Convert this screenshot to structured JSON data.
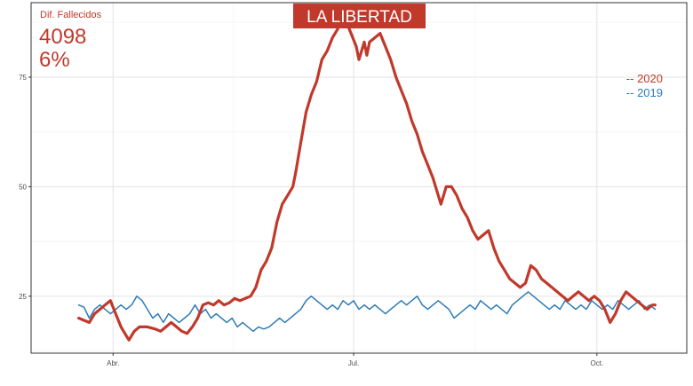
{
  "chart_data": {
    "type": "line",
    "title": "LA LIBERTAD",
    "annotation": {
      "label": "Dif. Fallecidos",
      "value": "4098",
      "percent": "6%"
    },
    "x_ticks": [
      {
        "label": "Abr.",
        "day": 91
      },
      {
        "label": "Jul.",
        "day": 182
      },
      {
        "label": "Oct.",
        "day": 274
      }
    ],
    "y_ticks": [
      25,
      50,
      75
    ],
    "xlim": [
      60,
      308
    ],
    "ylim": [
      12,
      92
    ],
    "grid": true,
    "legend_position": "right",
    "series": [
      {
        "name": "-- 2020",
        "color": "#c0392b",
        "points": [
          [
            78,
            20
          ],
          [
            80,
            19.5
          ],
          [
            82,
            19
          ],
          [
            84,
            21
          ],
          [
            86,
            22
          ],
          [
            88,
            23
          ],
          [
            90,
            24
          ],
          [
            92,
            21
          ],
          [
            94,
            18
          ],
          [
            96,
            16
          ],
          [
            97,
            15
          ],
          [
            99,
            17
          ],
          [
            101,
            18
          ],
          [
            104,
            18
          ],
          [
            107,
            17.5
          ],
          [
            109,
            17
          ],
          [
            111,
            18
          ],
          [
            113,
            19
          ],
          [
            115,
            18
          ],
          [
            117,
            17
          ],
          [
            119,
            16.5
          ],
          [
            121,
            18
          ],
          [
            123,
            20
          ],
          [
            125,
            23
          ],
          [
            127,
            23.5
          ],
          [
            129,
            23
          ],
          [
            131,
            24
          ],
          [
            133,
            23
          ],
          [
            135,
            23.5
          ],
          [
            137,
            24.5
          ],
          [
            139,
            24
          ],
          [
            141,
            24.5
          ],
          [
            143,
            25
          ],
          [
            145,
            27
          ],
          [
            147,
            31
          ],
          [
            149,
            33
          ],
          [
            151,
            36
          ],
          [
            153,
            42
          ],
          [
            155,
            46
          ],
          [
            157,
            48
          ],
          [
            159,
            50
          ],
          [
            160,
            53
          ],
          [
            162,
            60
          ],
          [
            164,
            67
          ],
          [
            166,
            71
          ],
          [
            168,
            74
          ],
          [
            170,
            79
          ],
          [
            172,
            81
          ],
          [
            174,
            84
          ],
          [
            176,
            86
          ],
          [
            177,
            89
          ],
          [
            178,
            87
          ],
          [
            179,
            88
          ],
          [
            181,
            85
          ],
          [
            183,
            82
          ],
          [
            184,
            79
          ],
          [
            185,
            81
          ],
          [
            186,
            83
          ],
          [
            187,
            80
          ],
          [
            188,
            83
          ],
          [
            190,
            84
          ],
          [
            192,
            85
          ],
          [
            194,
            82
          ],
          [
            196,
            79
          ],
          [
            198,
            75
          ],
          [
            200,
            72
          ],
          [
            202,
            69
          ],
          [
            204,
            65
          ],
          [
            206,
            62
          ],
          [
            208,
            58
          ],
          [
            210,
            55
          ],
          [
            212,
            52
          ],
          [
            214,
            48
          ],
          [
            215,
            46
          ],
          [
            217,
            50
          ],
          [
            219,
            50
          ],
          [
            221,
            48
          ],
          [
            223,
            45
          ],
          [
            225,
            43
          ],
          [
            227,
            40
          ],
          [
            229,
            38
          ],
          [
            231,
            39
          ],
          [
            233,
            40
          ],
          [
            235,
            36
          ],
          [
            237,
            33
          ],
          [
            239,
            31
          ],
          [
            241,
            29
          ],
          [
            243,
            28
          ],
          [
            245,
            27
          ],
          [
            247,
            28
          ],
          [
            249,
            32
          ],
          [
            251,
            31
          ],
          [
            253,
            29
          ],
          [
            255,
            28
          ],
          [
            257,
            27
          ],
          [
            259,
            26
          ],
          [
            261,
            25
          ],
          [
            263,
            24
          ],
          [
            265,
            25
          ],
          [
            267,
            26
          ],
          [
            269,
            25
          ],
          [
            271,
            24
          ],
          [
            273,
            25
          ],
          [
            275,
            24
          ],
          [
            277,
            22
          ],
          [
            279,
            19
          ],
          [
            281,
            21
          ],
          [
            283,
            24
          ],
          [
            285,
            26
          ],
          [
            287,
            25
          ],
          [
            289,
            24
          ],
          [
            291,
            23
          ],
          [
            293,
            22
          ],
          [
            295,
            23
          ],
          [
            296,
            23
          ]
        ]
      },
      {
        "name": "-- 2019",
        "color": "#2e7bb6",
        "points": [
          [
            78,
            23
          ],
          [
            80,
            22.5
          ],
          [
            82,
            20
          ],
          [
            84,
            22
          ],
          [
            86,
            23
          ],
          [
            88,
            22
          ],
          [
            90,
            21
          ],
          [
            92,
            22
          ],
          [
            94,
            23
          ],
          [
            96,
            22
          ],
          [
            98,
            23
          ],
          [
            100,
            25
          ],
          [
            102,
            24
          ],
          [
            104,
            22
          ],
          [
            106,
            20
          ],
          [
            108,
            21
          ],
          [
            110,
            19
          ],
          [
            112,
            21
          ],
          [
            114,
            20
          ],
          [
            116,
            19
          ],
          [
            118,
            20
          ],
          [
            120,
            21
          ],
          [
            122,
            23
          ],
          [
            124,
            21
          ],
          [
            126,
            22
          ],
          [
            128,
            20
          ],
          [
            130,
            21
          ],
          [
            132,
            20
          ],
          [
            134,
            19
          ],
          [
            136,
            20
          ],
          [
            138,
            18
          ],
          [
            140,
            19
          ],
          [
            142,
            18
          ],
          [
            144,
            17
          ],
          [
            146,
            18
          ],
          [
            148,
            17.5
          ],
          [
            150,
            18
          ],
          [
            152,
            19
          ],
          [
            154,
            20
          ],
          [
            156,
            19
          ],
          [
            158,
            20
          ],
          [
            160,
            21
          ],
          [
            162,
            22
          ],
          [
            164,
            24
          ],
          [
            166,
            25
          ],
          [
            168,
            24
          ],
          [
            170,
            23
          ],
          [
            172,
            22
          ],
          [
            174,
            23
          ],
          [
            176,
            22
          ],
          [
            178,
            24
          ],
          [
            180,
            23
          ],
          [
            182,
            24
          ],
          [
            184,
            22
          ],
          [
            186,
            23
          ],
          [
            188,
            22
          ],
          [
            190,
            23
          ],
          [
            192,
            22
          ],
          [
            194,
            21
          ],
          [
            196,
            22
          ],
          [
            198,
            23
          ],
          [
            200,
            24
          ],
          [
            202,
            23
          ],
          [
            204,
            24
          ],
          [
            206,
            25
          ],
          [
            208,
            23
          ],
          [
            210,
            22
          ],
          [
            212,
            23
          ],
          [
            214,
            24
          ],
          [
            216,
            23
          ],
          [
            218,
            22
          ],
          [
            220,
            20
          ],
          [
            222,
            21
          ],
          [
            224,
            22
          ],
          [
            226,
            23
          ],
          [
            228,
            22
          ],
          [
            230,
            24
          ],
          [
            232,
            23
          ],
          [
            234,
            22
          ],
          [
            236,
            23
          ],
          [
            238,
            22
          ],
          [
            240,
            21
          ],
          [
            242,
            23
          ],
          [
            244,
            24
          ],
          [
            246,
            25
          ],
          [
            248,
            26
          ],
          [
            250,
            25
          ],
          [
            252,
            24
          ],
          [
            254,
            23
          ],
          [
            256,
            22
          ],
          [
            258,
            23
          ],
          [
            260,
            22
          ],
          [
            262,
            24
          ],
          [
            264,
            23
          ],
          [
            266,
            22
          ],
          [
            268,
            23
          ],
          [
            270,
            22
          ],
          [
            272,
            24
          ],
          [
            274,
            23
          ],
          [
            276,
            22
          ],
          [
            278,
            23
          ],
          [
            280,
            22
          ],
          [
            282,
            24
          ],
          [
            284,
            23
          ],
          [
            286,
            22
          ],
          [
            288,
            23
          ],
          [
            290,
            24
          ],
          [
            292,
            22
          ],
          [
            294,
            23
          ],
          [
            296,
            22
          ]
        ]
      }
    ]
  }
}
